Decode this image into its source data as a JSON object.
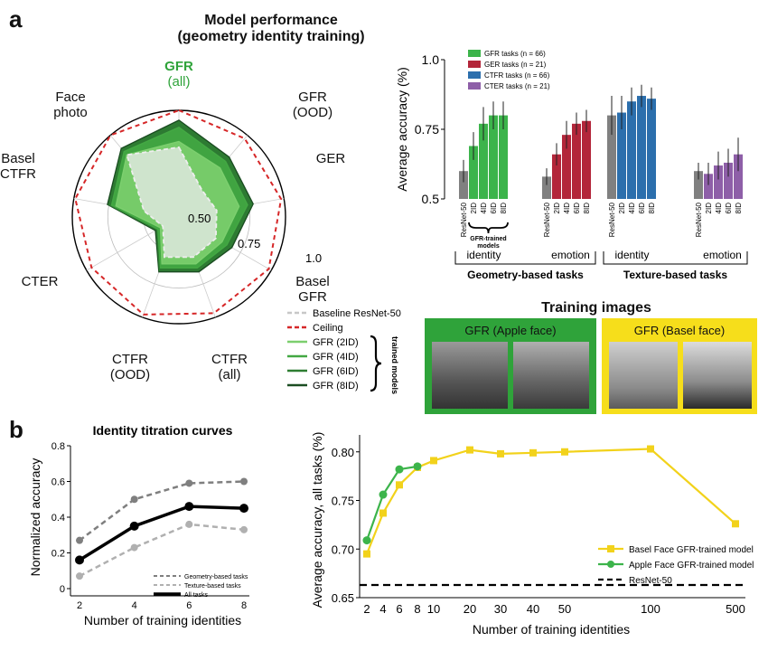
{
  "panel_a_label": "a",
  "panel_b_label": "b",
  "chart_data": [
    {
      "type": "radar",
      "title_line1": "Model performance",
      "title_line2": "(geometry identity training)",
      "axes": [
        {
          "line1": "GFR",
          "line2": "(all)",
          "highlight": true
        },
        {
          "line1": "GFR",
          "line2": "(OOD)"
        },
        {
          "line1": "GER",
          "line2": ""
        },
        {
          "line1": "Basel",
          "line2": "GFR"
        },
        {
          "line1": "CTFR",
          "line2": "(all)"
        },
        {
          "line1": "CTFR",
          "line2": "(OOD)"
        },
        {
          "line1": "CTER",
          "line2": ""
        },
        {
          "line1": "Basel",
          "line2": "CTFR"
        },
        {
          "line1": "Face",
          "line2": "photo"
        }
      ],
      "rlim": [
        0.25,
        1.0
      ],
      "ring_labels": [
        "0.50",
        "0.75",
        "1.0"
      ],
      "series": [
        {
          "name": "Ceiling",
          "color": "#d62728",
          "dashed": true,
          "values": [
            1.0,
            0.97,
            0.98,
            0.98,
            0.97,
            0.98,
            0.96,
            0.99,
            1.0
          ]
        },
        {
          "name": "GFR (8ID)",
          "color": "#1b4d22",
          "values": [
            0.93,
            0.8,
            0.78,
            0.68,
            0.66,
            0.66,
            0.44,
            0.76,
            0.88
          ]
        },
        {
          "name": "GFR (6ID)",
          "color": "#2e7d32",
          "values": [
            0.92,
            0.79,
            0.77,
            0.67,
            0.65,
            0.65,
            0.43,
            0.75,
            0.87
          ]
        },
        {
          "name": "GFR (4ID)",
          "color": "#43a843",
          "values": [
            0.88,
            0.76,
            0.74,
            0.64,
            0.63,
            0.63,
            0.42,
            0.73,
            0.85
          ]
        },
        {
          "name": "GFR (2ID)",
          "color": "#7ccf6e",
          "values": [
            0.78,
            0.7,
            0.68,
            0.6,
            0.6,
            0.6,
            0.4,
            0.7,
            0.82
          ]
        },
        {
          "name": "Baseline ResNet-50",
          "color": "#d9d9d9",
          "dashed": true,
          "values": [
            0.74,
            0.5,
            0.52,
            0.55,
            0.55,
            0.55,
            0.38,
            0.5,
            0.82
          ]
        }
      ],
      "legend": [
        "Baseline ResNet-50",
        "Ceiling",
        "GFR (2ID)",
        "GFR (4ID)",
        "GFR (6ID)",
        "GFR (8ID)"
      ],
      "legend_side_label": "trained models"
    },
    {
      "type": "bar",
      "ylabel": "Average accuracy (%)",
      "ylim": [
        0.5,
        1.0
      ],
      "yticks": [
        "0.5",
        "0.75",
        "1.0"
      ],
      "legend": [
        {
          "label": "GFR tasks (n = 66)",
          "color": "#3cb44b"
        },
        {
          "label": "GER tasks (n = 21)",
          "color": "#b3263a"
        },
        {
          "label": "CTFR tasks (n = 66)",
          "color": "#2c6fad"
        },
        {
          "label": "CTER tasks (n = 21)",
          "color": "#8e5fa8"
        }
      ],
      "groups": [
        {
          "categories": [
            "ResNet-50",
            "2ID",
            "4ID",
            "6ID",
            "8ID"
          ],
          "values": [
            0.6,
            0.69,
            0.77,
            0.8,
            0.8
          ],
          "errors": [
            0.04,
            0.05,
            0.06,
            0.05,
            0.05
          ],
          "color": "#3cb44b"
        },
        {
          "categories": [
            "ResNet-50",
            "2ID",
            "4ID",
            "6ID",
            "8ID"
          ],
          "values": [
            0.58,
            0.66,
            0.73,
            0.77,
            0.78
          ],
          "errors": [
            0.03,
            0.04,
            0.05,
            0.04,
            0.04
          ],
          "color": "#b3263a"
        },
        {
          "categories": [
            "ResNet-50",
            "2ID",
            "4ID",
            "6ID",
            "8ID"
          ],
          "values": [
            0.8,
            0.81,
            0.85,
            0.87,
            0.86
          ],
          "errors": [
            0.07,
            0.06,
            0.05,
            0.04,
            0.04
          ],
          "color": "#2c6fad"
        },
        {
          "categories": [
            "ResNet-50",
            "2ID",
            "4ID",
            "6ID",
            "8ID"
          ],
          "values": [
            0.6,
            0.59,
            0.62,
            0.63,
            0.66
          ],
          "errors": [
            0.03,
            0.04,
            0.05,
            0.05,
            0.06
          ],
          "color": "#8e5fa8"
        }
      ],
      "brace_label_line1": "GFR-trained",
      "brace_label_line2": "models",
      "sub_labels": [
        "identity",
        "emotion",
        "identity",
        "emotion"
      ],
      "group_labels": [
        "Geometry-based tasks",
        "Texture-based tasks"
      ]
    },
    {
      "type": "line",
      "title": "Identity titration curves",
      "xlabel": "Number of training identities",
      "ylabel": "Normalized accuracy",
      "x": [
        2,
        4,
        6,
        8
      ],
      "ylim": [
        0,
        0.8
      ],
      "yticks": [
        "0",
        "0.2",
        "0.4",
        "0.6",
        "0.8"
      ],
      "xticks": [
        "2",
        "4",
        "6",
        "8"
      ],
      "series": [
        {
          "name": "Geometry-based tasks",
          "values": [
            0.27,
            0.5,
            0.59,
            0.6
          ],
          "color": "#7f7f7f",
          "dashed": true
        },
        {
          "name": "Texture-based tasks",
          "values": [
            0.07,
            0.23,
            0.36,
            0.33
          ],
          "color": "#b0b0b0",
          "dashed": true
        },
        {
          "name": "All tasks",
          "values": [
            0.16,
            0.35,
            0.46,
            0.45
          ],
          "color": "#000000"
        }
      ]
    },
    {
      "type": "line",
      "xlabel": "Number of training identities",
      "ylabel": "Average accuracy, all tasks (%)",
      "ylim": [
        0.65,
        0.81
      ],
      "yticks": [
        "0.65",
        "0.70",
        "0.75",
        "0.80"
      ],
      "xticks": [
        "2",
        "4",
        "6",
        "8",
        "10",
        "20",
        "30",
        "40",
        "50",
        "100",
        "500"
      ],
      "series": [
        {
          "name": "Basel Face GFR-trained model",
          "x": [
            2,
            4,
            6,
            8,
            10,
            20,
            30,
            40,
            50,
            100,
            500
          ],
          "values": [
            0.695,
            0.737,
            0.766,
            0.784,
            0.791,
            0.802,
            0.798,
            0.799,
            0.8,
            0.803,
            0.726
          ],
          "color": "#f2d21b",
          "marker": "square"
        },
        {
          "name": "Apple Face GFR-trained model",
          "x": [
            2,
            4,
            6,
            8
          ],
          "values": [
            0.709,
            0.756,
            0.782,
            0.785
          ],
          "color": "#3cb44b",
          "marker": "circle"
        },
        {
          "name": "ResNet-50",
          "hline": 0.663,
          "color": "#000000",
          "dashed": true
        }
      ]
    }
  ],
  "training_images": {
    "title": "Training images",
    "apple_label": "GFR (Apple face)",
    "basel_label": "GFR (Basel face)"
  }
}
